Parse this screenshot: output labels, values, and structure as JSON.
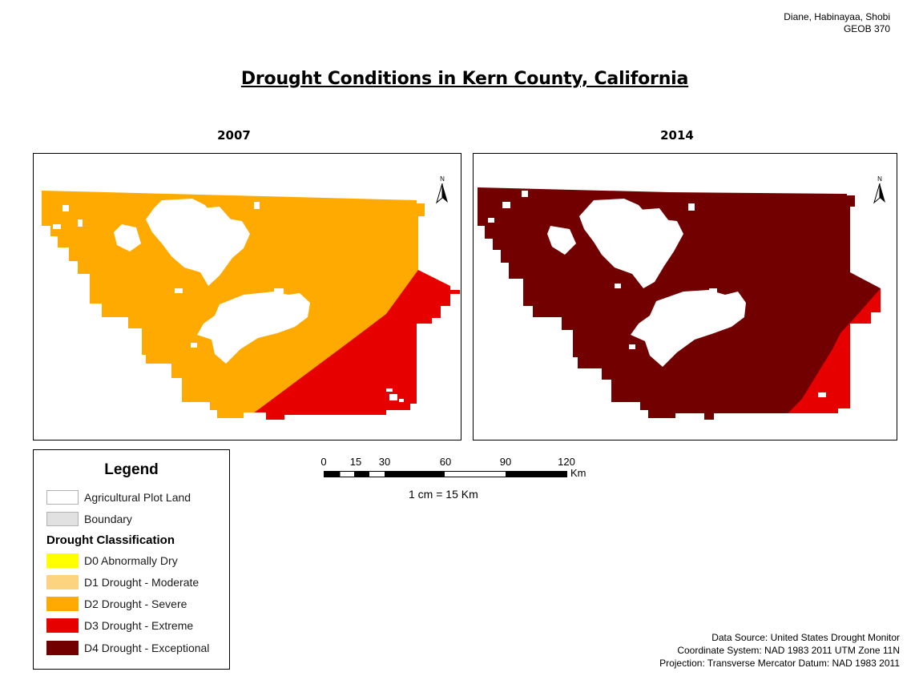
{
  "credit": {
    "authors": "Diane, Habinayaa, Shobi",
    "course": "GEOB 370"
  },
  "title": "Drought Conditions in Kern County, California",
  "maps": [
    {
      "year": "2007",
      "north_label": "N"
    },
    {
      "year": "2014",
      "north_label": "N"
    }
  ],
  "legend": {
    "title": "Legend",
    "items": [
      {
        "label": "Agricultural Plot Land",
        "color": "#ffffff"
      },
      {
        "label": "Boundary",
        "color": "#e1e1e1"
      }
    ],
    "classification_title": "Drought Classification",
    "classes": [
      {
        "label": "D0 Abnormally Dry",
        "color": "#ffff00"
      },
      {
        "label": "D1 Drought - Moderate",
        "color": "#fcd37f"
      },
      {
        "label": "D2 Drought - Severe",
        "color": "#ffaa00"
      },
      {
        "label": "D3 Drought - Extreme",
        "color": "#e60000"
      },
      {
        "label": "D4 Drought - Exceptional",
        "color": "#730000"
      }
    ]
  },
  "scale_bar": {
    "ticks": [
      "0",
      "15",
      "30",
      "60",
      "90",
      "120"
    ],
    "unit": "Km",
    "ratio_text": "1 cm = 15 Km"
  },
  "sources": {
    "data_source": "Data Source: United States Drought Monitor",
    "coordinate_system": "Coordinate System: NAD 1983 2011 UTM Zone 11N",
    "projection": "Projection: Transverse Mercator Datum: NAD 1983 2011"
  }
}
